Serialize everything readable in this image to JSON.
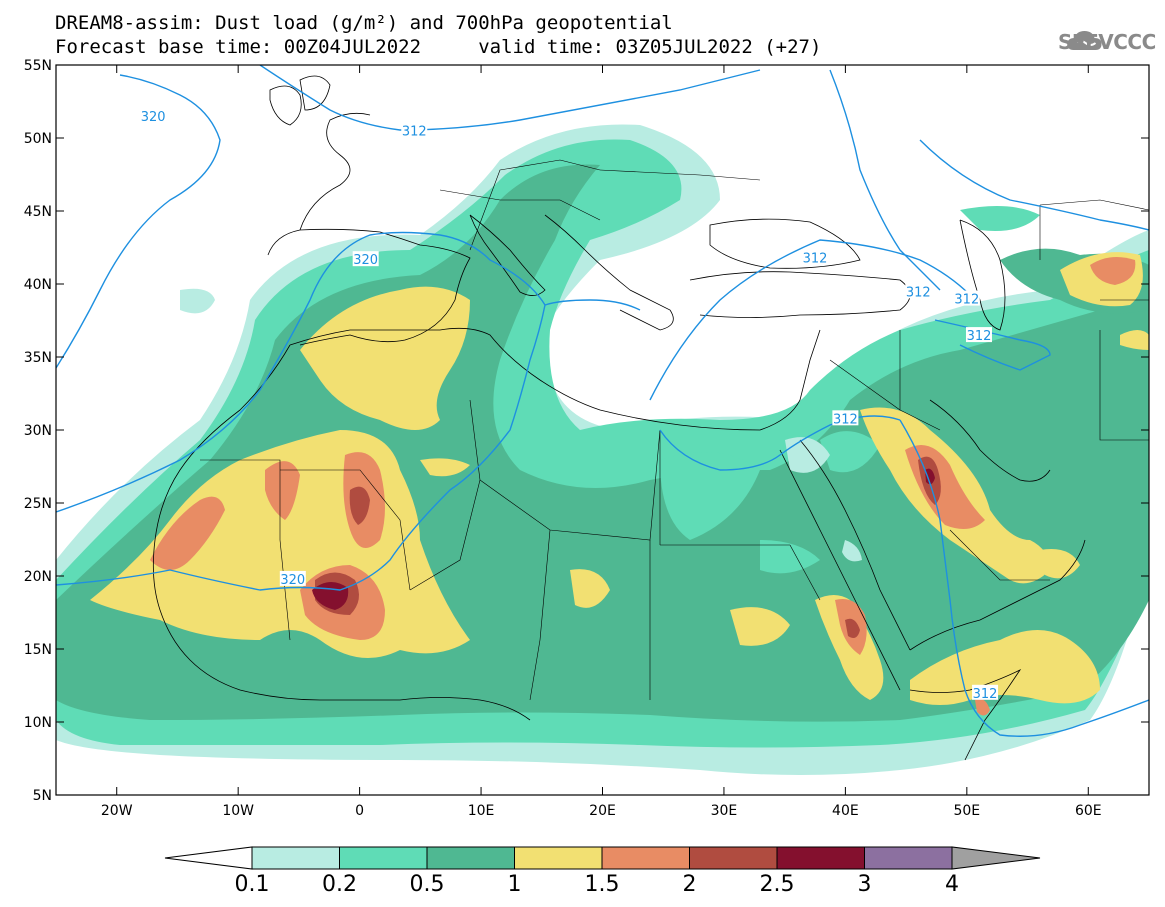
{
  "title": {
    "line1": "DREAM8-assim: Dust load (g/m²) and 700hPa geopotential",
    "line2": "Forecast base time: 00Z04JUL2022     valid time: 03Z05JUL2022 (+27)"
  },
  "logo": {
    "text": "SEEVCCC",
    "icon": "cloud-icon"
  },
  "map": {
    "lon_range": [
      -25,
      65
    ],
    "lat_range": [
      5,
      55
    ],
    "lon_ticks": [
      {
        "value": -20,
        "label": "20W"
      },
      {
        "value": -10,
        "label": "10W"
      },
      {
        "value": 0,
        "label": "0"
      },
      {
        "value": 10,
        "label": "10E"
      },
      {
        "value": 20,
        "label": "20E"
      },
      {
        "value": 30,
        "label": "30E"
      },
      {
        "value": 40,
        "label": "40E"
      },
      {
        "value": 50,
        "label": "50E"
      },
      {
        "value": 60,
        "label": "60E"
      }
    ],
    "lat_ticks": [
      {
        "value": 55,
        "label": "55N"
      },
      {
        "value": 50,
        "label": "50N"
      },
      {
        "value": 45,
        "label": "45N"
      },
      {
        "value": 40,
        "label": "40N"
      },
      {
        "value": 35,
        "label": "35N"
      },
      {
        "value": 30,
        "label": "30N"
      },
      {
        "value": 25,
        "label": "25N"
      },
      {
        "value": 20,
        "label": "20N"
      },
      {
        "value": 15,
        "label": "15N"
      },
      {
        "value": 10,
        "label": "10N"
      },
      {
        "value": 5,
        "label": "5N"
      }
    ],
    "contour_color": "#1e90e0",
    "contour_labels": [
      {
        "text": "320",
        "lon": -17,
        "lat": 51.5
      },
      {
        "text": "312",
        "lon": 4.5,
        "lat": 50.5
      },
      {
        "text": "320",
        "lon": 0.5,
        "lat": 41.7
      },
      {
        "text": "312",
        "lon": 37.5,
        "lat": 41.8
      },
      {
        "text": "312",
        "lon": 46,
        "lat": 39.5
      },
      {
        "text": "312",
        "lon": 50,
        "lat": 39
      },
      {
        "text": "312",
        "lon": 51,
        "lat": 36.5
      },
      {
        "text": "312",
        "lon": 40,
        "lat": 30.8
      },
      {
        "text": "320",
        "lon": -5.5,
        "lat": 19.8
      },
      {
        "text": "312",
        "lon": 51.5,
        "lat": 12
      }
    ]
  },
  "colorbar": {
    "levels": [
      "0.1",
      "0.2",
      "0.5",
      "1",
      "1.5",
      "2",
      "2.5",
      "3",
      "4"
    ],
    "colors": [
      "#ffffff",
      "#b8ece2",
      "#5fdcb6",
      "#4fb892",
      "#f2e072",
      "#e88c64",
      "#b04c40",
      "#84102e",
      "#8c70a0",
      "#a0a0a0"
    ]
  }
}
